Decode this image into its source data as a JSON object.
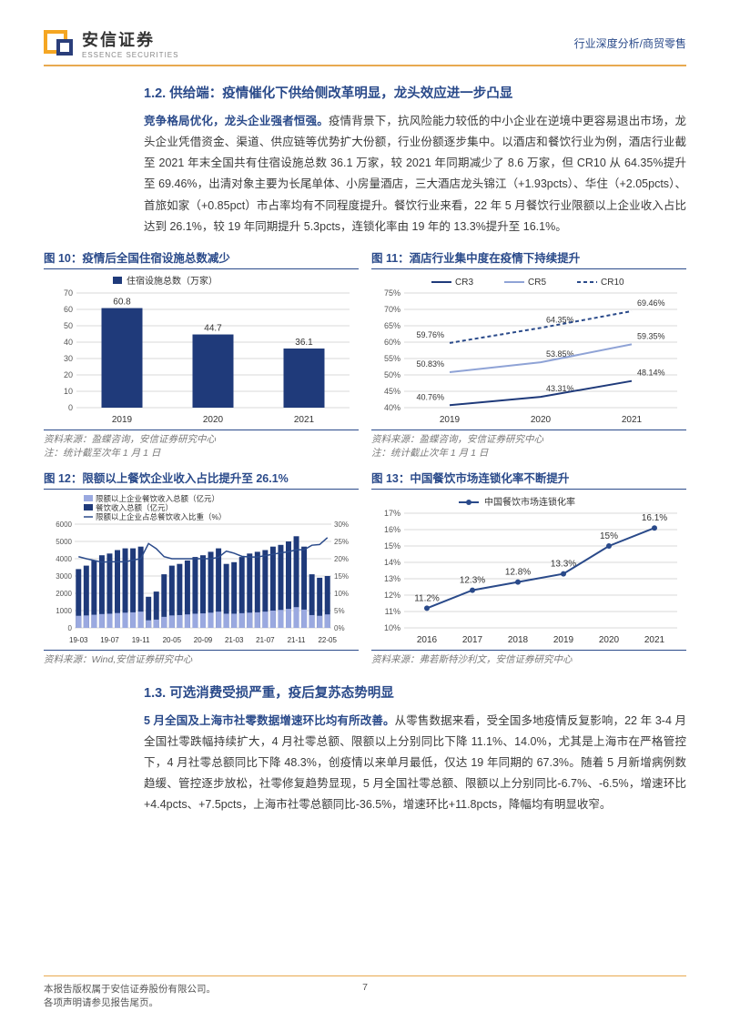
{
  "header": {
    "company_cn": "安信证券",
    "company_en": "ESSENCE SECURITIES",
    "breadcrumb": "行业深度分析/商贸零售"
  },
  "section_1_2": {
    "title": "1.2. 供给端：疫情催化下供给侧改革明显，龙头效应进一步凸显",
    "lead": "竞争格局优化，龙头企业强者恒强。",
    "body": "疫情背景下，抗风险能力较低的中小企业在逆境中更容易退出市场，龙头企业凭借资金、渠道、供应链等优势扩大份额，行业份额逐步集中。以酒店和餐饮行业为例，酒店行业截至 2021 年末全国共有住宿设施总数 36.1 万家，较 2021 年同期减少了 8.6 万家，但 CR10 从 64.35%提升至 69.46%，出清对象主要为长尾单体、小房量酒店，三大酒店龙头锦江（+1.93pcts）、华住（+2.05pcts）、首旅如家（+0.85pct）市占率均有不同程度提升。餐饮行业来看，22 年 5 月餐饮行业限额以上企业收入占比达到 26.1%，较 19 年同期提升 5.3pcts，连锁化率由 19 年的 13.3%提升至 16.1%。"
  },
  "fig10": {
    "title": "图 10：疫情后全国住宿设施总数减少",
    "legend": "住宿设施总数（万家）",
    "type": "bar",
    "categories": [
      "2019",
      "2020",
      "2021"
    ],
    "values": [
      60.8,
      44.7,
      36.1
    ],
    "ylim": [
      0,
      70
    ],
    "ytick_step": 10,
    "bar_color": "#1f3a7a",
    "grid_color": "#d9d9d9",
    "text_color": "#333333",
    "label_fontsize": 10,
    "src": "资料来源：盈蝶咨询，安信证券研究中心",
    "note": "注：统计截至次年 1 月 1 日"
  },
  "fig11": {
    "title": "图 11：酒店行业集中度在疫情下持续提升",
    "type": "line",
    "categories": [
      "2019",
      "2020",
      "2021"
    ],
    "series": [
      {
        "name": "CR3",
        "color": "#1f3a7a",
        "dash": "0",
        "values": [
          40.76,
          43.31,
          48.14
        ]
      },
      {
        "name": "CR5",
        "color": "#8fa3d6",
        "dash": "0",
        "values": [
          50.83,
          53.85,
          59.35
        ]
      },
      {
        "name": "CR10",
        "color": "#2a4a8a",
        "dash": "4 3",
        "values": [
          59.76,
          64.35,
          69.46
        ]
      }
    ],
    "ylim": [
      40,
      75
    ],
    "ytick_step": 5,
    "grid_color": "#d9d9d9",
    "src": "资料来源：盈蝶咨询，安信证券研究中心",
    "note": "注：统计截止次年 1 月 1 日"
  },
  "fig12": {
    "title": "图 12：限额以上餐饮企业收入占比提升至 26.1%",
    "type": "combo",
    "legend": [
      "限额以上企业餐饮收入总额（亿元）",
      "餐饮收入总额（亿元）",
      "限额以上企业占总餐饮收入比重（%）"
    ],
    "colors": {
      "bar1": "#9aa9e0",
      "bar2": "#1f3a7a",
      "line": "#2a4a8a"
    },
    "x_labels": [
      "19-03",
      "19-07",
      "19-11",
      "20-05",
      "20-09",
      "21-03",
      "21-07",
      "21-11",
      "22-05"
    ],
    "y1": {
      "lim": [
        0,
        6000
      ],
      "step": 1000
    },
    "y2": {
      "lim": [
        0,
        30
      ],
      "step": 5
    },
    "bars_total": [
      3400,
      3600,
      3900,
      4200,
      4300,
      4500,
      4600,
      4600,
      4700,
      1800,
      2100,
      3100,
      3600,
      3700,
      3900,
      4100,
      4200,
      4400,
      4600,
      3700,
      3800,
      4100,
      4300,
      4400,
      4500,
      4700,
      4800,
      5000,
      5300,
      4700,
      3100,
      2900,
      3000
    ],
    "bars_above": [
      700,
      720,
      760,
      800,
      820,
      860,
      880,
      900,
      940,
      440,
      480,
      640,
      720,
      740,
      780,
      820,
      840,
      880,
      940,
      820,
      820,
      850,
      880,
      900,
      940,
      1000,
      1040,
      1100,
      1200,
      1060,
      740,
      700,
      780
    ],
    "line_pct": [
      20.6,
      20.0,
      19.5,
      19.0,
      19.1,
      19.1,
      19.1,
      19.6,
      20.0,
      24.4,
      22.9,
      20.6,
      20.0,
      20.0,
      20.0,
      20.0,
      20.0,
      20.0,
      20.4,
      22.2,
      21.6,
      20.7,
      20.5,
      20.5,
      20.9,
      21.3,
      21.7,
      22.0,
      22.6,
      22.6,
      23.9,
      24.1,
      26.1
    ],
    "grid_color": "#d9d9d9",
    "src": "资料来源：Wind,安信证券研究中心"
  },
  "fig13": {
    "title": "图 13：中国餐饮市场连锁化率不断提升",
    "type": "line",
    "legend": "中国餐饮市场连锁化率",
    "categories": [
      "2016",
      "2017",
      "2018",
      "2019",
      "2020",
      "2021"
    ],
    "values": [
      11.2,
      12.3,
      12.8,
      13.3,
      15.0,
      16.1
    ],
    "ylim": [
      10,
      17
    ],
    "ytick_step": 1,
    "line_color": "#2a4a8a",
    "grid_color": "#d9d9d9",
    "src": "资料来源：弗若斯特沙利文，安信证券研究中心"
  },
  "section_1_3": {
    "title": "1.3. 可选消费受损严重，疫后复苏态势明显",
    "lead": "5 月全国及上海市社零数据增速环比均有所改善。",
    "body": "从零售数据来看，受全国多地疫情反复影响，22 年 3-4 月全国社零跌幅持续扩大，4 月社零总额、限额以上分别同比下降 11.1%、14.0%，尤其是上海市在严格管控下，4 月社零总额同比下降 48.3%，创疫情以来单月最低，仅达 19 年同期的 67.3%。随着 5 月新增病例数趋缓、管控逐步放松，社零修复趋势显现，5 月全国社零总额、限额以上分别同比-6.7%、-6.5%，增速环比+4.4pcts、+7.5pcts，上海市社零总额同比-36.5%，增速环比+11.8pcts，降幅均有明显收窄。"
  },
  "footer": {
    "left1": "本报告版权属于安信证券股份有限公司。",
    "left2": "各项声明请参见报告尾页。",
    "page": "7"
  }
}
